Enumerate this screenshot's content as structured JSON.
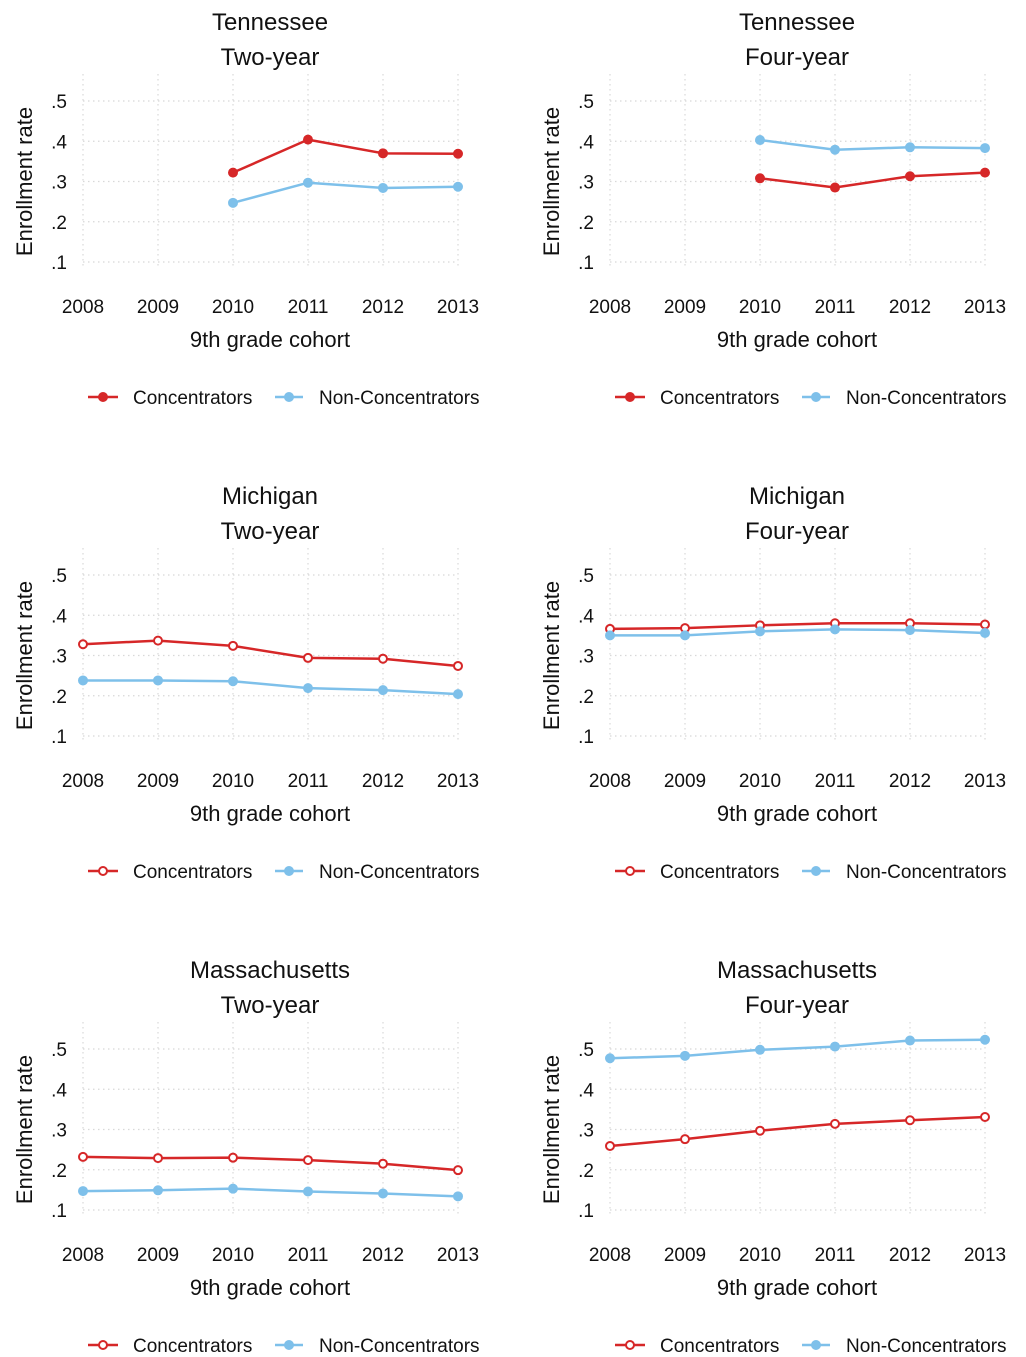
{
  "chart_data": [
    {
      "type": "line",
      "title": "Tennessee",
      "subtitle": "Two-year",
      "xlabel": "9th grade cohort",
      "ylabel": "Enrollment rate",
      "x": [
        "2008",
        "2009",
        "2010",
        "2011",
        "2012",
        "2013"
      ],
      "yticks": [
        ".1",
        ".2",
        ".3",
        ".4",
        ".5"
      ],
      "ylim": [
        0.1,
        0.5
      ],
      "grid": true,
      "legend": "bottom",
      "series": [
        {
          "name": "Concentrators",
          "color": "#d62728",
          "marker": "filled",
          "values": [
            null,
            null,
            0.322,
            0.404,
            0.37,
            0.369
          ]
        },
        {
          "name": "Non-Concentrators",
          "color": "#7ec0ea",
          "marker": "filled",
          "values": [
            null,
            null,
            0.247,
            0.297,
            0.284,
            0.287
          ]
        }
      ]
    },
    {
      "type": "line",
      "title": "Tennessee",
      "subtitle": "Four-year",
      "xlabel": "9th grade cohort",
      "ylabel": "Enrollment rate",
      "x": [
        "2008",
        "2009",
        "2010",
        "2011",
        "2012",
        "2013"
      ],
      "yticks": [
        ".1",
        ".2",
        ".3",
        ".4",
        ".5"
      ],
      "ylim": [
        0.1,
        0.5
      ],
      "grid": true,
      "legend": "bottom",
      "series": [
        {
          "name": "Concentrators",
          "color": "#d62728",
          "marker": "filled",
          "values": [
            null,
            null,
            0.308,
            0.285,
            0.313,
            0.322
          ]
        },
        {
          "name": "Non-Concentrators",
          "color": "#7ec0ea",
          "marker": "filled",
          "values": [
            null,
            null,
            0.403,
            0.379,
            0.385,
            0.383
          ]
        }
      ]
    },
    {
      "type": "line",
      "title": "Michigan",
      "subtitle": "Two-year",
      "xlabel": "9th grade cohort",
      "ylabel": "Enrollment rate",
      "x": [
        "2008",
        "2009",
        "2010",
        "2011",
        "2012",
        "2013"
      ],
      "yticks": [
        ".1",
        ".2",
        ".3",
        ".4",
        ".5"
      ],
      "ylim": [
        0.1,
        0.5
      ],
      "grid": true,
      "legend": "bottom",
      "series": [
        {
          "name": "Concentrators",
          "color": "#d62728",
          "marker": "hollow",
          "values": [
            0.328,
            0.337,
            0.324,
            0.294,
            0.292,
            0.274
          ]
        },
        {
          "name": "Non-Concentrators",
          "color": "#7ec0ea",
          "marker": "filled",
          "values": [
            0.238,
            0.238,
            0.236,
            0.219,
            0.214,
            0.204
          ]
        }
      ]
    },
    {
      "type": "line",
      "title": "Michigan",
      "subtitle": "Four-year",
      "xlabel": "9th grade cohort",
      "ylabel": "Enrollment rate",
      "x": [
        "2008",
        "2009",
        "2010",
        "2011",
        "2012",
        "2013"
      ],
      "yticks": [
        ".1",
        ".2",
        ".3",
        ".4",
        ".5"
      ],
      "ylim": [
        0.1,
        0.5
      ],
      "grid": true,
      "legend": "bottom",
      "series": [
        {
          "name": "Concentrators",
          "color": "#d62728",
          "marker": "hollow",
          "values": [
            0.366,
            0.368,
            0.375,
            0.38,
            0.38,
            0.377
          ]
        },
        {
          "name": "Non-Concentrators",
          "color": "#7ec0ea",
          "marker": "filled",
          "values": [
            0.35,
            0.35,
            0.36,
            0.365,
            0.363,
            0.356
          ]
        }
      ]
    },
    {
      "type": "line",
      "title": "Massachusetts",
      "subtitle": "Two-year",
      "xlabel": "9th grade cohort",
      "ylabel": "Enrollment rate",
      "x": [
        "2008",
        "2009",
        "2010",
        "2011",
        "2012",
        "2013"
      ],
      "yticks": [
        ".1",
        ".2",
        ".3",
        ".4",
        ".5"
      ],
      "ylim": [
        0.1,
        0.5
      ],
      "grid": true,
      "legend": "bottom",
      "series": [
        {
          "name": "Concentrators",
          "color": "#d62728",
          "marker": "hollow",
          "values": [
            0.232,
            0.229,
            0.23,
            0.224,
            0.215,
            0.199
          ]
        },
        {
          "name": "Non-Concentrators",
          "color": "#7ec0ea",
          "marker": "filled",
          "values": [
            0.147,
            0.149,
            0.153,
            0.146,
            0.141,
            0.134
          ]
        }
      ]
    },
    {
      "type": "line",
      "title": "Massachusetts",
      "subtitle": "Four-year",
      "xlabel": "9th grade cohort",
      "ylabel": "Enrollment rate",
      "x": [
        "2008",
        "2009",
        "2010",
        "2011",
        "2012",
        "2013"
      ],
      "yticks": [
        ".1",
        ".2",
        ".3",
        ".4",
        ".5"
      ],
      "ylim": [
        0.1,
        0.5
      ],
      "grid": true,
      "legend": "bottom",
      "series": [
        {
          "name": "Concentrators",
          "color": "#d62728",
          "marker": "hollow",
          "values": [
            0.259,
            0.276,
            0.297,
            0.314,
            0.323,
            0.331
          ]
        },
        {
          "name": "Non-Concentrators",
          "color": "#7ec0ea",
          "marker": "filled",
          "values": [
            0.477,
            0.483,
            0.498,
            0.506,
            0.521,
            0.523
          ]
        }
      ]
    }
  ]
}
